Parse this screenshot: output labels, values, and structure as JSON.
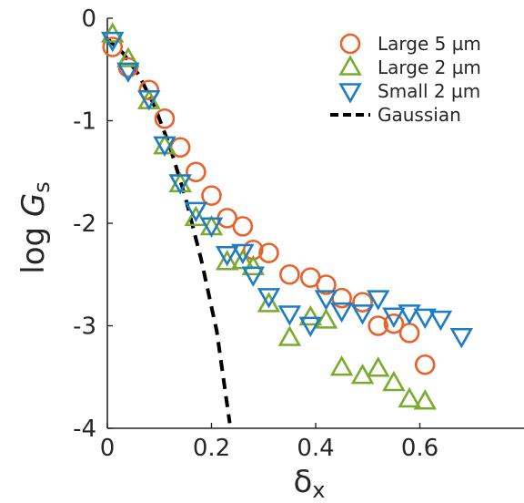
{
  "chart_data": {
    "type": "scatter",
    "title": "",
    "xlabel": "δx",
    "ylabel": "log Gs",
    "xlim": [
      0,
      0.8
    ],
    "ylim": [
      -4,
      0
    ],
    "xticks": [
      0,
      0.2,
      0.4,
      0.6
    ],
    "xtick_labels": [
      "0",
      "0.2",
      "0.4",
      "0.6"
    ],
    "yticks": [
      0,
      -1,
      -2,
      -3,
      -4
    ],
    "ytick_labels": [
      "0",
      "-1",
      "-2",
      "-3",
      "-4"
    ],
    "grid": false,
    "legend_position": "top-right",
    "series": [
      {
        "name": "Large 5 µm",
        "marker": "circle",
        "color": "#e8622c",
        "x": [
          0.01,
          0.04,
          0.08,
          0.11,
          0.14,
          0.17,
          0.2,
          0.23,
          0.26,
          0.28,
          0.31,
          0.35,
          0.39,
          0.42,
          0.45,
          0.49,
          0.52,
          0.55,
          0.58,
          0.61
        ],
        "y": [
          -0.28,
          -0.48,
          -0.7,
          -0.98,
          -1.26,
          -1.5,
          -1.73,
          -1.95,
          -2.03,
          -2.26,
          -2.29,
          -2.5,
          -2.53,
          -2.6,
          -2.73,
          -2.77,
          -3.0,
          -2.98,
          -3.07,
          -3.38
        ]
      },
      {
        "name": "Large 2 µm",
        "marker": "triangle-up",
        "color": "#78ab2e",
        "x": [
          0.01,
          0.04,
          0.08,
          0.11,
          0.14,
          0.17,
          0.2,
          0.23,
          0.26,
          0.28,
          0.31,
          0.35,
          0.39,
          0.42,
          0.45,
          0.49,
          0.52,
          0.55,
          0.58,
          0.61
        ],
        "y": [
          -0.16,
          -0.4,
          -0.81,
          -1.25,
          -1.62,
          -1.95,
          -2.04,
          -2.38,
          -2.37,
          -2.43,
          -2.79,
          -3.12,
          -2.92,
          -2.95,
          -3.41,
          -3.49,
          -3.42,
          -3.56,
          -3.72,
          -3.74
        ]
      },
      {
        "name": "Small 2 µm",
        "marker": "triangle-down",
        "color": "#1d7cc4",
        "x": [
          0.01,
          0.04,
          0.08,
          0.11,
          0.14,
          0.17,
          0.2,
          0.23,
          0.26,
          0.28,
          0.31,
          0.35,
          0.39,
          0.42,
          0.45,
          0.49,
          0.52,
          0.55,
          0.58,
          0.61,
          0.64,
          0.68
        ],
        "y": [
          -0.21,
          -0.51,
          -0.78,
          -1.23,
          -1.6,
          -1.87,
          -2.02,
          -2.3,
          -2.28,
          -2.5,
          -2.71,
          -2.88,
          -2.99,
          -2.73,
          -2.85,
          -2.87,
          -2.73,
          -2.9,
          -2.87,
          -2.91,
          -2.93,
          -3.1
        ]
      },
      {
        "name": "Gaussian",
        "marker": "none",
        "line": "dashed",
        "color": "#000000",
        "x": [
          0.0,
          0.03,
          0.06,
          0.09,
          0.12,
          0.15,
          0.18,
          0.21,
          0.235
        ],
        "y": [
          -0.2,
          -0.34,
          -0.55,
          -0.85,
          -1.25,
          -1.75,
          -2.35,
          -3.05,
          -3.95
        ]
      }
    ]
  }
}
